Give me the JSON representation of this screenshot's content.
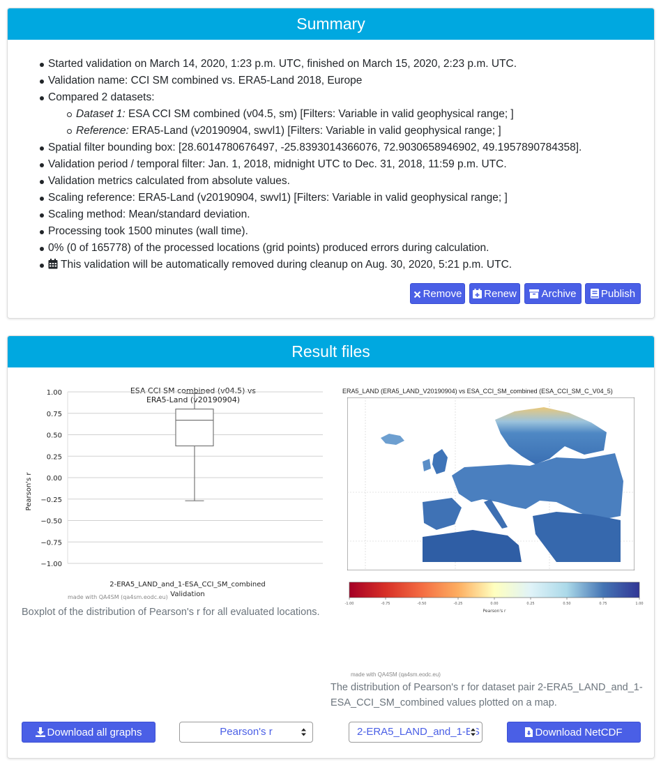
{
  "summary": {
    "title": "Summary",
    "started": "Started validation on March 14, 2020, 1:23 p.m. UTC, finished on March 15, 2020, 2:23 p.m. UTC.",
    "name": "Validation name: CCI SM combined vs. ERA5-Land 2018, Europe",
    "compared": "Compared 2 datasets:",
    "dataset1_label": "Dataset 1:",
    "dataset1_text": " ESA CCI SM combined (v04.5, sm) [Filters: Variable in valid geophysical range; ]",
    "reference_label": "Reference:",
    "reference_text": " ERA5-Land (v20190904, swvl1) [Filters: Variable in valid geophysical range; ]",
    "spatial": "Spatial filter bounding box: [28.6014780676497, -25.8393014366076, 72.9030658946902, 49.1957890784358].",
    "period": "Validation period / temporal filter: Jan. 1, 2018, midnight UTC to Dec. 31, 2018, 11:59 p.m. UTC.",
    "metrics": "Validation metrics calculated from absolute values.",
    "scaling_ref": "Scaling reference: ERA5-Land (v20190904, swvl1) [Filters: Variable in valid geophysical range; ]",
    "scaling_method": "Scaling method: Mean/standard deviation.",
    "processing": "Processing took 1500 minutes (wall time).",
    "errors": "0% (0 of 165778) of the processed locations (grid points) produced errors during calculation.",
    "cleanup": "This validation will be automatically removed during cleanup on Aug. 30, 2020, 5:21 p.m. UTC.",
    "buttons": {
      "remove": "Remove",
      "renew": "Renew",
      "archive": "Archive",
      "publish": "Publish"
    }
  },
  "results": {
    "title": "Result files",
    "boxplot_caption": "Boxplot of the distribution of Pearson's r for all evaluated locations.",
    "map_caption": "The distribution of Pearson's r for dataset pair 2-ERA5_LAND_and_1-ESA_CCI_SM_combined values plotted on a map.",
    "download_graphs": "Download all graphs",
    "metric_select": "Pearson's r",
    "pair_select": "2-ERA5_LAND_and_1-ES",
    "download_netcdf": "Download NetCDF",
    "map_title": "ERA5_LAND (ERA5_LAND_V20190904) vs ESA_CCI_SM_combined (ESA_CCI_SM_C_V04_5)",
    "map_watermark": "made with QA4SM (qa4sm.eodc.eu)",
    "colorbar_label": "Pearson's r",
    "colorbar_ticks": [
      "-1.00",
      "-0.75",
      "-0.50",
      "-0.25",
      "0.00",
      "0.25",
      "0.50",
      "0.75",
      "1.00"
    ]
  },
  "chart_data": {
    "type": "boxplot",
    "title_line1": "ESA CCI SM combined (v04.5) vs",
    "title_line2": "ERA5-Land (v20190904)",
    "ylabel": "Pearson's r",
    "xlabel": "Validation",
    "category": "2-ERA5_LAND_and_1-ESA_CCI_SM_combined",
    "ylim": [
      -1.0,
      1.0
    ],
    "yticks": [
      "1.00",
      "0.75",
      "0.50",
      "0.25",
      "0.00",
      "−0.25",
      "−0.50",
      "−0.75",
      "−1.00"
    ],
    "ytick_values": [
      1.0,
      0.75,
      0.5,
      0.25,
      0.0,
      -0.25,
      -0.5,
      -0.75,
      -1.0
    ],
    "grid": true,
    "box": {
      "whisker_low": -0.27,
      "q1": 0.37,
      "median": 0.67,
      "q3": 0.8,
      "whisker_high": 0.98
    },
    "watermark": "made with QA4SM (qa4sm.eodc.eu)"
  }
}
